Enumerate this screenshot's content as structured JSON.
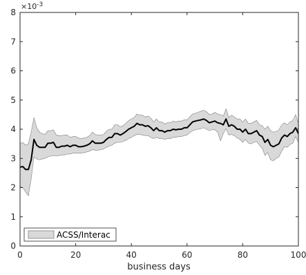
{
  "chart_data": {
    "type": "line",
    "xlabel": "business days",
    "ylabel": "",
    "y_exponent_label": "×10",
    "y_exponent_power": "-3",
    "xlim": [
      0,
      100
    ],
    "ylim": [
      0,
      8
    ],
    "xticks": [
      0,
      20,
      40,
      60,
      80,
      100
    ],
    "yticks": [
      0,
      1,
      2,
      3,
      4,
      5,
      6,
      7,
      8
    ],
    "grid": false,
    "legend_position": "bottom-left",
    "colors": {
      "band": "#d9d9d9",
      "band_edge": "#808080",
      "line": "#000000",
      "axes": "#262626"
    },
    "series": [
      {
        "name": "ACSS/Interac",
        "x": [
          0,
          1,
          2,
          3,
          4,
          5,
          6,
          7,
          8,
          9,
          10,
          11,
          12,
          13,
          14,
          15,
          16,
          17,
          18,
          19,
          20,
          21,
          22,
          23,
          24,
          25,
          26,
          27,
          28,
          29,
          30,
          31,
          32,
          33,
          34,
          35,
          36,
          37,
          38,
          39,
          40,
          41,
          42,
          43,
          44,
          45,
          46,
          47,
          48,
          49,
          50,
          51,
          52,
          53,
          54,
          55,
          56,
          57,
          58,
          59,
          60,
          61,
          62,
          63,
          64,
          65,
          66,
          67,
          68,
          69,
          70,
          71,
          72,
          73,
          74,
          75,
          76,
          77,
          78,
          79,
          80,
          81,
          82,
          83,
          84,
          85,
          86,
          87,
          88,
          89,
          90,
          91,
          92,
          93,
          94,
          95,
          96,
          97,
          98,
          99,
          100
        ],
        "y": [
          2.7,
          2.72,
          2.62,
          2.62,
          2.95,
          3.65,
          3.45,
          3.38,
          3.38,
          3.38,
          3.52,
          3.52,
          3.55,
          3.38,
          3.38,
          3.42,
          3.42,
          3.45,
          3.4,
          3.45,
          3.45,
          3.4,
          3.4,
          3.42,
          3.45,
          3.5,
          3.6,
          3.52,
          3.52,
          3.52,
          3.55,
          3.65,
          3.72,
          3.72,
          3.85,
          3.85,
          3.8,
          3.85,
          3.92,
          4.0,
          4.05,
          4.1,
          4.2,
          4.15,
          4.15,
          4.1,
          4.12,
          4.05,
          3.95,
          4.05,
          3.95,
          3.95,
          3.9,
          3.95,
          3.95,
          4.0,
          3.98,
          4.0,
          4.0,
          4.05,
          4.05,
          4.15,
          4.25,
          4.28,
          4.3,
          4.32,
          4.35,
          4.3,
          4.22,
          4.25,
          4.28,
          4.22,
          4.2,
          4.15,
          4.35,
          4.1,
          4.15,
          4.1,
          4.0,
          4.0,
          3.9,
          4.0,
          3.85,
          3.85,
          3.9,
          3.95,
          3.8,
          3.75,
          3.55,
          3.65,
          3.45,
          3.4,
          3.45,
          3.5,
          3.7,
          3.8,
          3.75,
          3.85,
          3.9,
          4.05,
          3.85
        ],
        "lower": [
          2.05,
          2.0,
          1.85,
          1.72,
          2.3,
          3.05,
          2.98,
          2.95,
          2.98,
          3.0,
          3.05,
          3.08,
          3.1,
          3.08,
          3.1,
          3.12,
          3.12,
          3.15,
          3.15,
          3.18,
          3.18,
          3.18,
          3.18,
          3.2,
          3.22,
          3.25,
          3.3,
          3.28,
          3.28,
          3.3,
          3.32,
          3.38,
          3.42,
          3.45,
          3.52,
          3.55,
          3.55,
          3.58,
          3.62,
          3.68,
          3.72,
          3.78,
          3.82,
          3.82,
          3.8,
          3.78,
          3.78,
          3.72,
          3.68,
          3.72,
          3.68,
          3.68,
          3.65,
          3.68,
          3.68,
          3.72,
          3.72,
          3.75,
          3.75,
          3.78,
          3.8,
          3.88,
          3.95,
          3.98,
          4.0,
          4.02,
          4.05,
          4.0,
          3.95,
          3.98,
          3.98,
          3.9,
          3.6,
          3.85,
          4.02,
          3.8,
          3.82,
          3.78,
          3.7,
          3.65,
          3.55,
          3.65,
          3.52,
          3.5,
          3.55,
          3.58,
          3.45,
          3.35,
          3.1,
          3.2,
          2.95,
          2.92,
          3.0,
          3.05,
          3.25,
          3.4,
          3.38,
          3.48,
          3.52,
          3.75,
          3.55
        ],
        "upper": [
          3.5,
          3.55,
          3.45,
          3.5,
          3.9,
          4.4,
          4.05,
          3.9,
          3.85,
          3.82,
          3.95,
          3.95,
          3.98,
          3.8,
          3.78,
          3.78,
          3.8,
          3.8,
          3.72,
          3.75,
          3.75,
          3.7,
          3.68,
          3.7,
          3.72,
          3.78,
          3.9,
          3.82,
          3.8,
          3.8,
          3.82,
          3.92,
          4.0,
          4.0,
          4.15,
          4.15,
          4.08,
          4.12,
          4.2,
          4.3,
          4.35,
          4.4,
          4.52,
          4.48,
          4.48,
          4.42,
          4.45,
          4.38,
          4.25,
          4.35,
          4.25,
          4.25,
          4.18,
          4.22,
          4.22,
          4.28,
          4.25,
          4.28,
          4.28,
          4.32,
          4.32,
          4.42,
          4.52,
          4.55,
          4.58,
          4.62,
          4.65,
          4.6,
          4.5,
          4.52,
          4.58,
          4.52,
          4.5,
          4.45,
          4.7,
          4.4,
          4.48,
          4.42,
          4.35,
          4.35,
          4.25,
          4.35,
          4.2,
          4.2,
          4.25,
          4.3,
          4.15,
          4.12,
          4.0,
          4.1,
          3.95,
          3.9,
          3.92,
          3.98,
          4.15,
          4.22,
          4.15,
          4.25,
          4.3,
          4.5,
          4.2
        ]
      }
    ]
  }
}
